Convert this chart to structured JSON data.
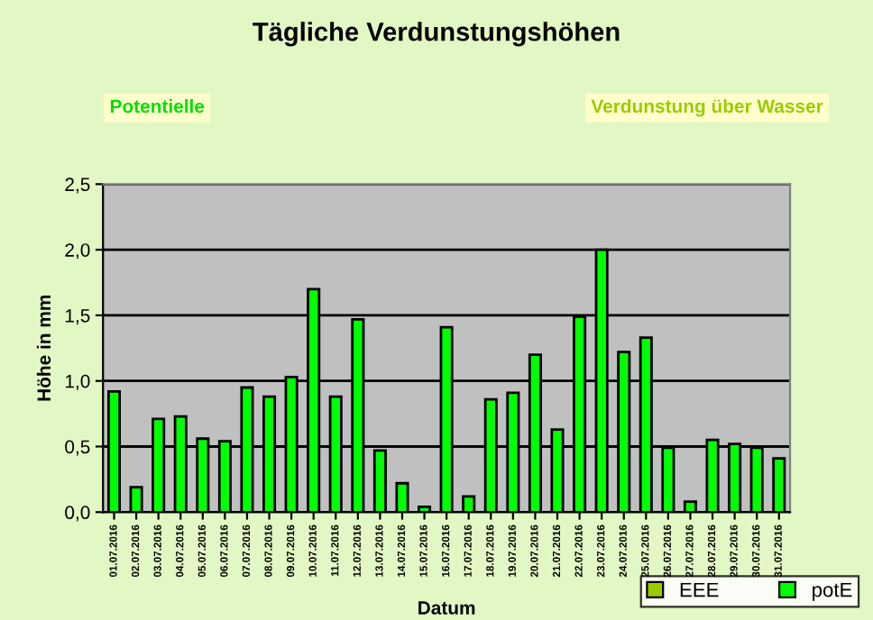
{
  "chart_data": {
    "type": "bar",
    "title": "Tägliche Verdunstungshöhen",
    "xlabel": "Datum",
    "ylabel": "Höhe in mm",
    "annotations": [
      "Potentielle",
      "Verdunstung über Wasser"
    ],
    "categories": [
      "01.07.2016",
      "02.07.2016",
      "03.07.2016",
      "04.07.2016",
      "05.07.2016",
      "06.07.2016",
      "07.07.2016",
      "08.07.2016",
      "09.07.2016",
      "10.07.2016",
      "11.07.2016",
      "12.07.2016",
      "13.07.2016",
      "14.07.2016",
      "15.07.2016",
      "16.07.2016",
      "17.07.2016",
      "18.07.2016",
      "19.07.2016",
      "20.07.2016",
      "21.07.2016",
      "22.07.2016",
      "23.07.2016",
      "24.07.2016",
      "25.07.2016",
      "26.07.2016",
      "27.07.2016",
      "28.07.2016",
      "29.07.2016",
      "30.07.2016",
      "31.07.2016"
    ],
    "series": [
      {
        "name": "EEE",
        "color": "#99cc00",
        "values": [
          null,
          null,
          null,
          null,
          null,
          null,
          null,
          null,
          null,
          null,
          null,
          null,
          null,
          null,
          null,
          null,
          null,
          null,
          null,
          null,
          null,
          null,
          null,
          null,
          null,
          null,
          null,
          null,
          null,
          null,
          null
        ]
      },
      {
        "name": "potE",
        "color": "#00ff00",
        "values": [
          0.92,
          0.19,
          0.71,
          0.73,
          0.56,
          0.54,
          0.95,
          0.88,
          1.03,
          1.7,
          0.88,
          1.47,
          0.47,
          0.22,
          0.04,
          1.41,
          0.12,
          0.86,
          0.91,
          1.2,
          0.63,
          1.49,
          2.0,
          1.22,
          1.33,
          0.49,
          0.08,
          0.55,
          0.52,
          0.49,
          0.41
        ]
      }
    ],
    "ylim": [
      0,
      2.5
    ],
    "yticks": [
      {
        "value": 0,
        "label": "0,0"
      },
      {
        "value": 0.5,
        "label": "0,5"
      },
      {
        "value": 1,
        "label": "1,0"
      },
      {
        "value": 1.5,
        "label": "1,5"
      },
      {
        "value": 2,
        "label": "2,0"
      },
      {
        "value": 2.5,
        "label": "2,5"
      }
    ],
    "grid": "y",
    "legend": "bottom right"
  }
}
